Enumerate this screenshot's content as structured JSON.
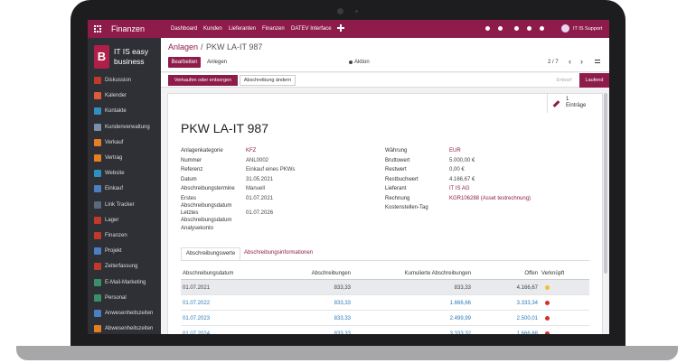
{
  "navbar": {
    "app": "Finanzen",
    "menu": [
      "Dashboard",
      "Kunden",
      "Lieferanten",
      "Finanzen",
      "DATEV Interface"
    ],
    "user": "IT IS Support"
  },
  "sidebar": {
    "logo": "B",
    "company": [
      "IT IS easy",
      "business"
    ],
    "items": [
      "Diskussion",
      "Kalender",
      "Kontakte",
      "Kundenverwaltung",
      "Verkauf",
      "Vertrag",
      "Website",
      "Einkauf",
      "Link Tracker",
      "Lager",
      "Finanzen",
      "Projekt",
      "Zeiterfassung",
      "E-Mail-Marketing",
      "Personal",
      "Anwesenheitszeiten",
      "Abwesenheitszeiten"
    ]
  },
  "control_panel": {
    "breadcrumb": [
      "Anlagen",
      "/",
      "PKW LA-IT 987"
    ],
    "buttons": [
      "Bearbeiten",
      "Anlegen"
    ],
    "action": "Aktion",
    "pager": "2 / 7"
  },
  "statusbar": {
    "buttons": [
      "Verkaufen oder entsorgen",
      "Abschreibung ändern"
    ],
    "states": [
      "Entwurf",
      "Laufend"
    ]
  },
  "smart_button": {
    "count": "1",
    "label": "Einträge"
  },
  "form": {
    "title": "PKW LA-IT 987",
    "left_fields": [
      {
        "label": "Anlagenkategorie",
        "value": "KFZ"
      },
      {
        "label": "Nummer",
        "value": "ANL0002"
      },
      {
        "label": "Referenz",
        "value": "Einkauf eines PKWs"
      },
      {
        "label": "Datum",
        "value": "31.05.2021"
      },
      {
        "label": "Abschreibungstermine",
        "value": "Manuell"
      },
      {
        "label": "Erstes Abschreibungsdatum",
        "value": "01.07.2021"
      },
      {
        "label": "Letztes Abschreibungsdatum",
        "value": "01.07.2026"
      },
      {
        "label": "Analysekonto"
      }
    ],
    "right_fields": [
      {
        "label": "Währung",
        "value": "EUR"
      },
      {
        "label": "Bruttowert",
        "value": "5.000,00 €"
      },
      {
        "label": "Restwert",
        "value": "0,00 €"
      },
      {
        "label": "Restbuchwert",
        "value": "4.166,67 €"
      },
      {
        "label": "Lieferant",
        "value": "IT IS AG"
      },
      {
        "label": "Rechnung",
        "value": "KGR106288 (Asset testrechnung)"
      },
      {
        "label": "Kostenstellen-Tag"
      }
    ]
  },
  "tabs": [
    "Abschreibungswerte",
    "Abschreibungsinformationen"
  ],
  "table": {
    "columns": [
      "Abschreibungsdatum",
      "Abschreibungen",
      "Kumulierte Abschreibungen",
      "Offen",
      "Verknüpft"
    ],
    "rows": [
      [
        "01.07.2021",
        "833,33",
        "833,33",
        "4.166,67"
      ],
      [
        "01.07.2022",
        "833,33",
        "1.666,66",
        "3.333,34"
      ],
      [
        "01.07.2023",
        "833,33",
        "2.499,99",
        "2.500,01"
      ],
      [
        "01.07.2024",
        "833,33",
        "3.333,32",
        "1.666,68"
      ]
    ],
    "status_colors": [
      "#f2c12e",
      "#d0312d",
      "#d0312d",
      "#d0312d"
    ]
  }
}
